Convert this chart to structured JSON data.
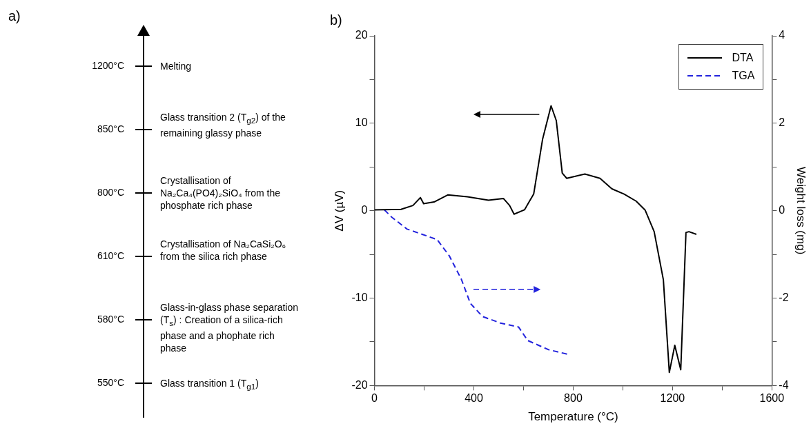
{
  "chart_data": [
    {
      "type": "other",
      "title": "a)",
      "annotations": [
        "1200°C",
        "Melting",
        "850°C",
        "Glass transition 2 (T$_{g2}$) of the remaining glassy phase",
        "800°C",
        "Crystallisation of Na₂Ca₄(PO4)₂SiO₄ from the phosphate rich phase",
        "610°C",
        "Crystallisation of Na₂CaSi₂O₆ from the silica rich phase",
        "580°C",
        "Glass-in-glass phase separation (T$_{s}$) : Creation of a silica-rich phase and a phophate rich phase",
        "550°C",
        "Glass transition 1 (T$_{g1}$)"
      ]
    },
    {
      "type": "line",
      "title": "b)",
      "xlabel": "Temperature (°C)",
      "ylabel": "ΔV (µV)",
      "y2label": "Weight loss (mg)",
      "xlim": [
        0,
        1600
      ],
      "xticks": [
        0,
        {
          "value": 200,
          "label": null
        },
        400,
        {
          "value": 600,
          "label": null
        },
        800,
        {
          "value": 1000,
          "label": null
        },
        1200,
        {
          "value": 1400,
          "label": null
        },
        1600
      ],
      "ylim": [
        -20,
        20
      ],
      "yticks": [
        -20,
        {
          "value": -15,
          "label": null
        },
        -10,
        {
          "value": -5,
          "label": null
        },
        0,
        {
          "value": 5,
          "label": null
        },
        10,
        {
          "value": 15,
          "label": null
        },
        20
      ],
      "y2lim": [
        -4,
        4
      ],
      "y2ticks": [
        -4,
        {
          "value": -3,
          "label": null
        },
        -2,
        {
          "value": -1,
          "label": null
        },
        0,
        {
          "value": 1,
          "label": null
        },
        2,
        {
          "value": 3,
          "label": null
        },
        4
      ],
      "grid": false,
      "legend": "top right",
      "marker": "none",
      "series": [
        {
          "name": "DTA",
          "color": "#000000",
          "line_style": "solid",
          "x": [
            0,
            107,
            155,
            185,
            198,
            240,
            295,
            374,
            459,
            519,
            544,
            562,
            604,
            641,
            677,
            711,
            732,
            756,
            774,
            847,
            908,
            956,
            1005,
            1053,
            1090,
            1126,
            1163,
            1187,
            1209,
            1233,
            1254,
            1266,
            1296
          ],
          "values": [
            0.1,
            0.15,
            0.6,
            1.5,
            0.8,
            1.0,
            1.8,
            1.6,
            1.2,
            1.4,
            0.6,
            -0.4,
            0.1,
            1.9,
            8.2,
            12.0,
            10.3,
            4.3,
            3.7,
            4.2,
            3.7,
            2.5,
            1.9,
            1.1,
            0.05,
            -2.4,
            -7.9,
            -18.5,
            -15.4,
            -18.2,
            -2.5,
            -2.4,
            -2.7
          ]
        },
        {
          "name": "TGA",
          "color": "#2222dd",
          "line_style": "dashed",
          "axis": "y2",
          "x": [
            40,
            70,
            131,
            192,
            252,
            301,
            350,
            386,
            435,
            507,
            580,
            617,
            701,
            775
          ],
          "values": [
            0.02,
            -0.15,
            -0.42,
            -0.54,
            -0.66,
            -1.03,
            -1.57,
            -2.12,
            -2.42,
            -2.57,
            -2.66,
            -2.97,
            -3.18,
            -3.28
          ]
        }
      ]
    }
  ]
}
